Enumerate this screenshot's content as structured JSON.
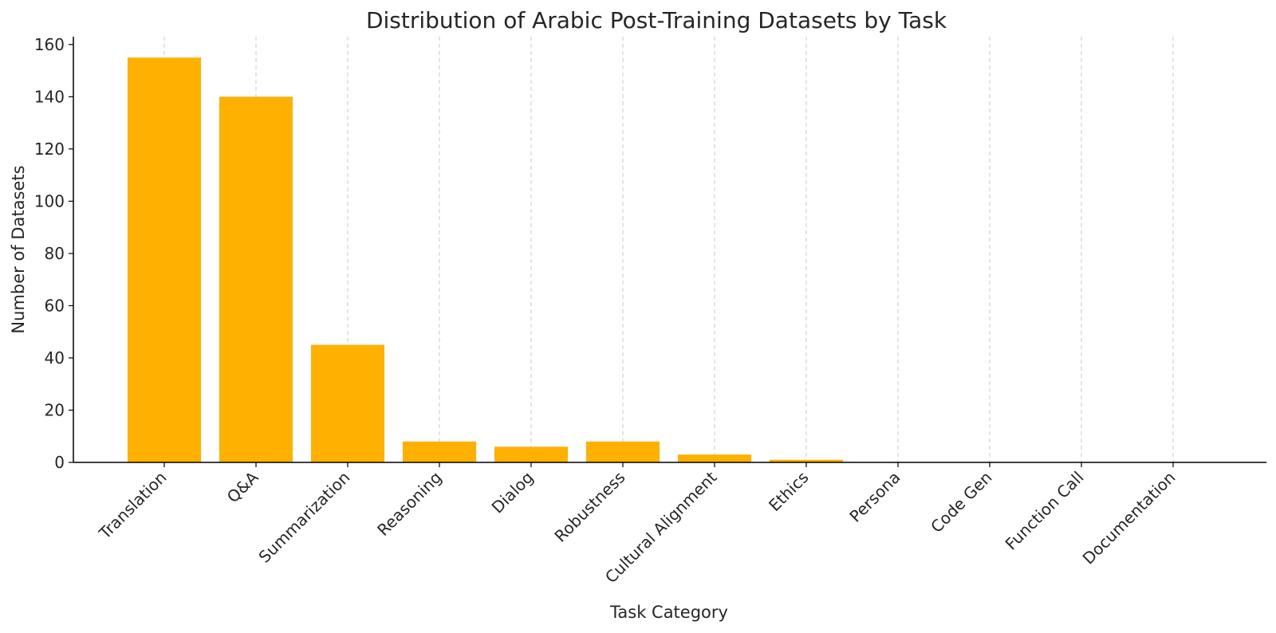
{
  "chart_data": {
    "type": "bar",
    "title": "Distribution of Arabic Post-Training Datasets by Task",
    "xlabel": "Task Category",
    "ylabel": "Number of Datasets",
    "categories": [
      "Translation",
      "Q&A",
      "Summarization",
      "Reasoning",
      "Dialog",
      "Robustness",
      "Cultural Alignment",
      "Ethics",
      "Persona",
      "Code Gen",
      "Function Call",
      "Documentation"
    ],
    "values": [
      155,
      140,
      45,
      8,
      6,
      8,
      3,
      1,
      0,
      0,
      0,
      0
    ],
    "ylim": [
      0,
      163
    ],
    "yticks": [
      0,
      20,
      40,
      60,
      80,
      100,
      120,
      140,
      160
    ],
    "grid": "vertical dashed",
    "bar_color": "#FFB000",
    "legend": "none"
  }
}
